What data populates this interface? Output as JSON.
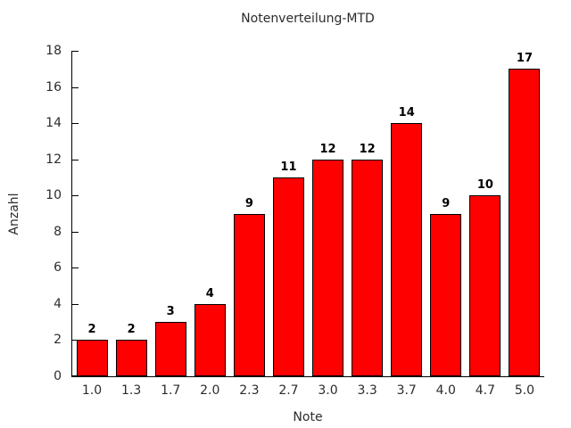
{
  "chart_data": {
    "type": "bar",
    "title": "Notenverteilung-MTD",
    "xlabel": "Note",
    "ylabel": "Anzahl",
    "categories": [
      "1.0",
      "1.3",
      "1.7",
      "2.0",
      "2.3",
      "2.7",
      "3.0",
      "3.3",
      "3.7",
      "4.0",
      "4.7",
      "5.0"
    ],
    "values": [
      2,
      2,
      3,
      4,
      9,
      11,
      12,
      12,
      14,
      9,
      10,
      17
    ],
    "bar_labels": [
      "2",
      "2",
      "3",
      "4",
      "9",
      "11",
      "12",
      "12",
      "14",
      "9",
      "10",
      "17"
    ],
    "ylim": [
      0,
      18
    ],
    "yticks": [
      0,
      2,
      4,
      6,
      8,
      10,
      12,
      14,
      16,
      18
    ],
    "grid": false,
    "legend": "none",
    "bar_color": "#ff0000",
    "bar_border_color": "#000000",
    "background_color": "#ffffff",
    "text_color": "#2b2b2b",
    "value_label_color": "#000000"
  }
}
